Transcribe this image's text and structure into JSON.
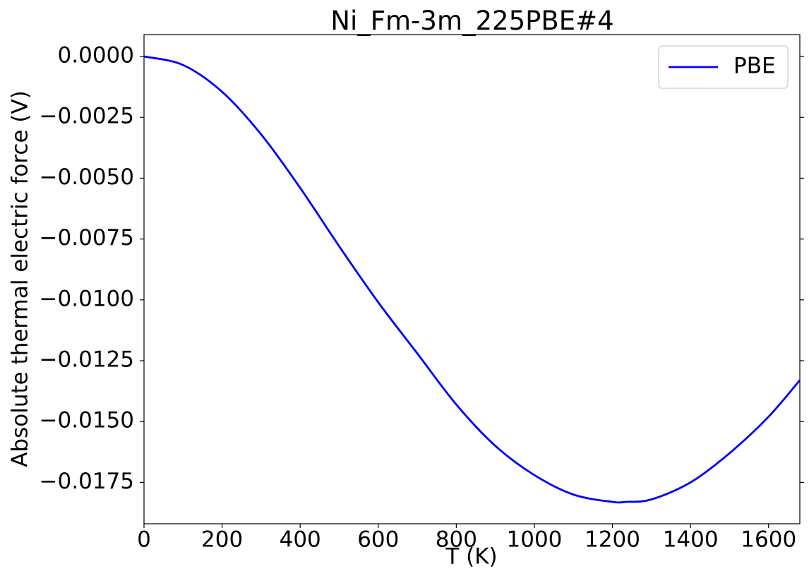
{
  "chart_data": {
    "type": "line",
    "title": "Ni_Fm-3m_225PBE#4",
    "xlabel": "T (K)",
    "ylabel": "Absolute thermal electric force (V)",
    "xlim": [
      0,
      1680
    ],
    "ylim": [
      -0.0192,
      0.0009
    ],
    "xticks": [
      0,
      200,
      400,
      600,
      800,
      1000,
      1200,
      1400,
      1600
    ],
    "xtick_labels": [
      "0",
      "200",
      "400",
      "600",
      "800",
      "1000",
      "1200",
      "1400",
      "1600"
    ],
    "yticks": [
      0.0,
      -0.0025,
      -0.005,
      -0.0075,
      -0.01,
      -0.0125,
      -0.015,
      -0.0175
    ],
    "ytick_labels": [
      "0.0000",
      "−0.0025",
      "−0.0050",
      "−0.0075",
      "−0.0100",
      "−0.0125",
      "−0.0150",
      "−0.0175"
    ],
    "grid": false,
    "legend_position": "upper right",
    "series": [
      {
        "name": "PBE",
        "color": "#0000ff",
        "x": [
          0,
          100,
          200,
          300,
          400,
          500,
          600,
          700,
          800,
          900,
          1000,
          1100,
          1200,
          1235,
          1300,
          1400,
          1500,
          1600,
          1680
        ],
        "y": [
          0.0,
          -0.00035,
          -0.00145,
          -0.0032,
          -0.0054,
          -0.0078,
          -0.0101,
          -0.0122,
          -0.0143,
          -0.016,
          -0.0172,
          -0.018,
          -0.0183,
          -0.0183,
          -0.0182,
          -0.0175,
          -0.0163,
          -0.0148,
          -0.0133
        ]
      }
    ]
  }
}
